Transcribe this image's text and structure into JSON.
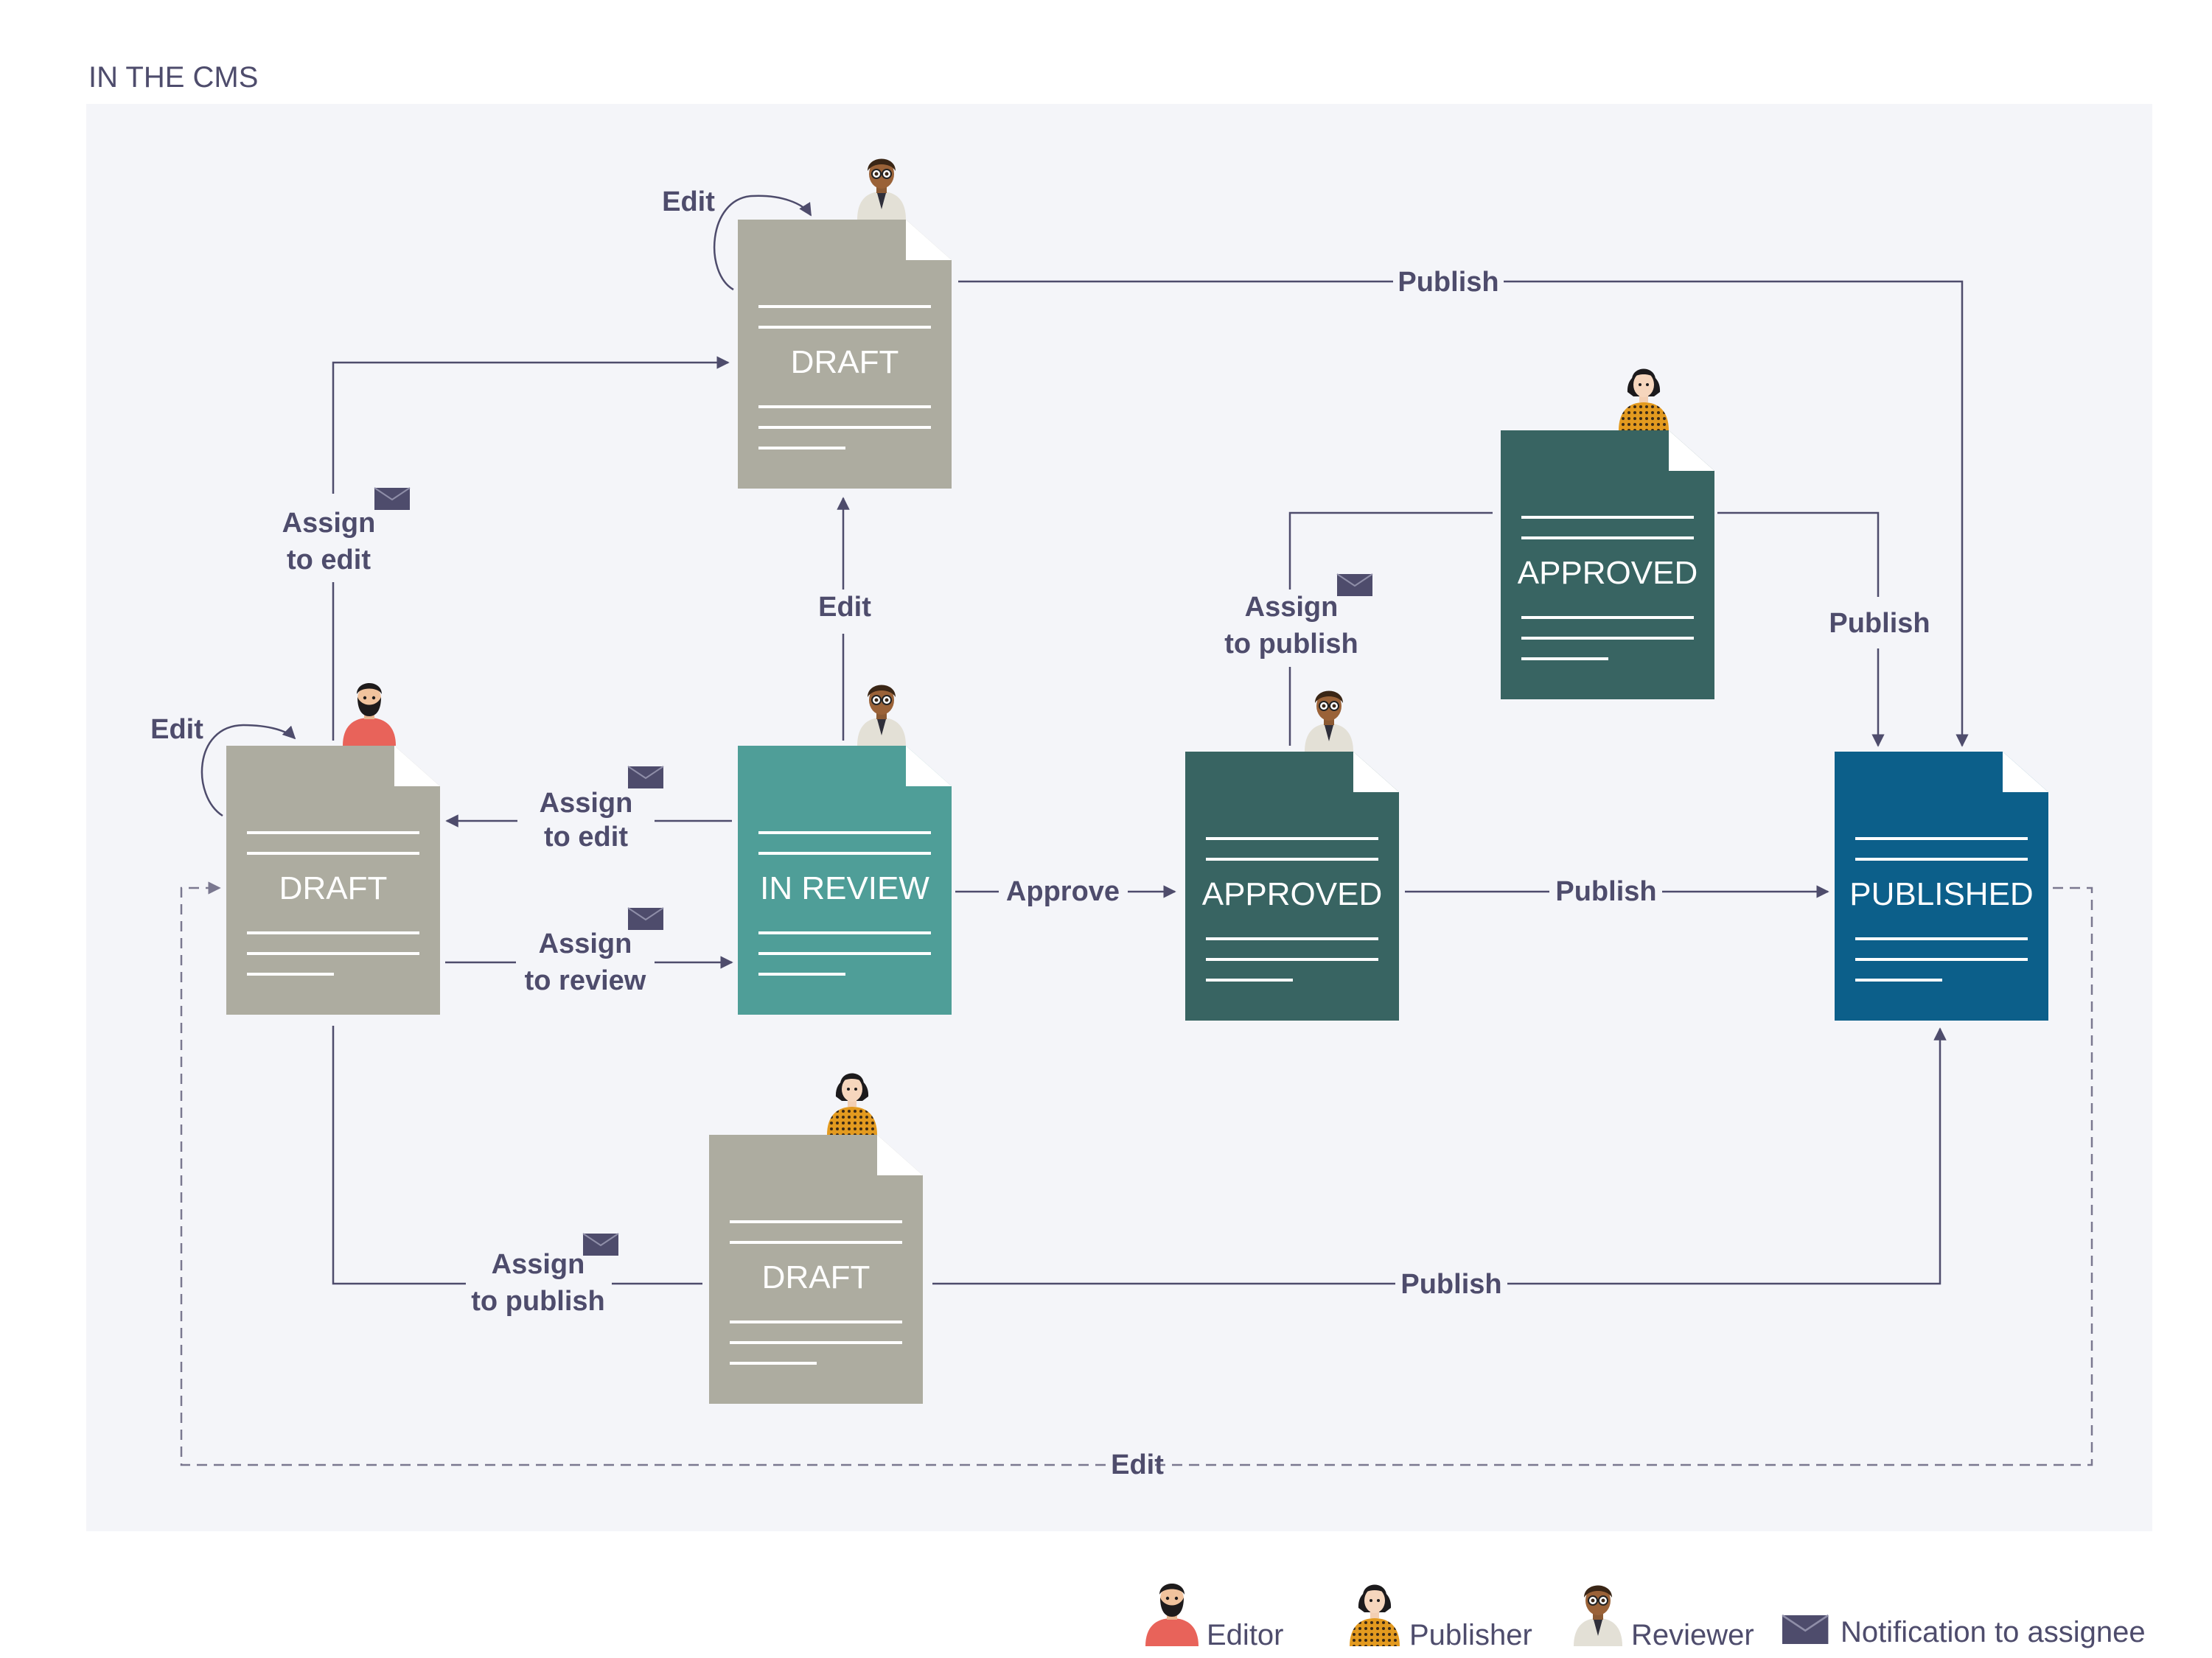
{
  "section_title": "IN THE CMS",
  "documents": {
    "draft_top": {
      "label": "DRAFT",
      "color": "#adaca0"
    },
    "draft_left": {
      "label": "DRAFT",
      "color": "#adaca0"
    },
    "in_review": {
      "label": "IN REVIEW",
      "color": "#4f9e98"
    },
    "approved_center": {
      "label": "APPROVED",
      "color": "#386462"
    },
    "approved_top": {
      "label": "APPROVED",
      "color": "#386462"
    },
    "published": {
      "label": "PUBLISHED",
      "color": "#0c5f8a"
    },
    "draft_bottom": {
      "label": "DRAFT",
      "color": "#adaca0"
    }
  },
  "edges": {
    "edit_top_loop": "Edit",
    "publish_top": "Publish",
    "assign_to_edit_left_1": "Assign",
    "assign_to_edit_left_2": "to edit",
    "edit_review_to_draft": "Edit",
    "assign_to_publish_top_1": "Assign",
    "assign_to_publish_top_2": "to publish",
    "publish_right": "Publish",
    "edit_left_loop": "Edit",
    "assign_to_edit_mid_1": "Assign",
    "assign_to_edit_mid_2": "to edit",
    "assign_to_review_1": "Assign",
    "assign_to_review_2": "to review",
    "approve": "Approve",
    "publish_center": "Publish",
    "assign_to_publish_bottom_1": "Assign",
    "assign_to_publish_bottom_2": "to publish",
    "publish_bottom": "Publish",
    "edit_dashed": "Edit"
  },
  "legend": {
    "editor": "Editor",
    "publisher": "Publisher",
    "reviewer": "Reviewer",
    "notification": "Notification to assignee"
  },
  "colors": {
    "panel": "#f4f5f9",
    "line": "#4e4c6c",
    "draft": "#adaca0",
    "review": "#4f9e98",
    "approved": "#386462",
    "published": "#0c5f8a",
    "editor_shirt": "#e8635a",
    "publisher_shirt": "#e39a1f",
    "reviewer_coat": "#e3e0d6",
    "envelope": "#4e4c6c"
  },
  "icons": [
    "editor-avatar-icon",
    "publisher-avatar-icon",
    "reviewer-avatar-icon",
    "envelope-icon"
  ]
}
